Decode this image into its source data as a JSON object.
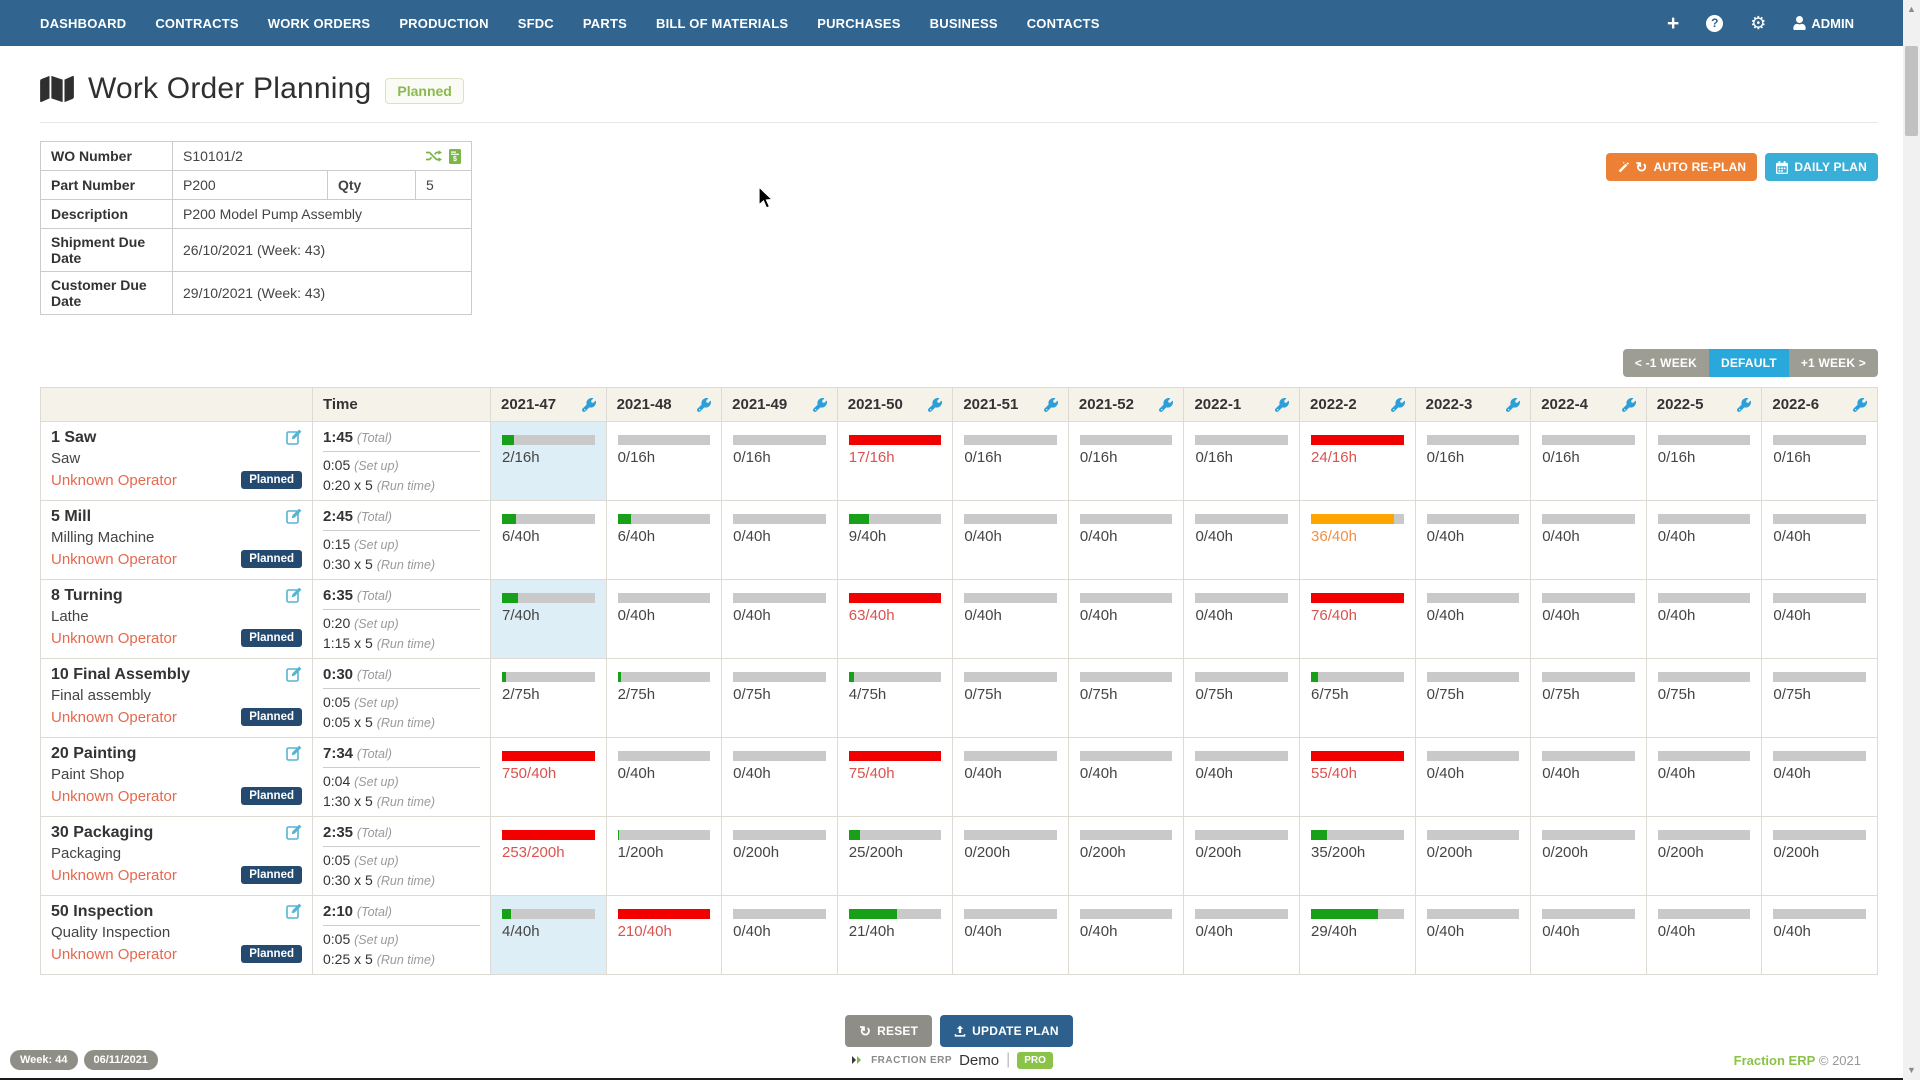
{
  "nav": {
    "items": [
      "DASHBOARD",
      "CONTRACTS",
      "WORK ORDERS",
      "PRODUCTION",
      "SFDC",
      "PARTS",
      "BILL OF MATERIALS",
      "PURCHASES",
      "BUSINESS",
      "CONTACTS"
    ],
    "admin_label": "ADMIN"
  },
  "header": {
    "title": "Work Order Planning",
    "status_badge": "Planned"
  },
  "details": {
    "wo_number_label": "WO Number",
    "wo_number": "S10101/2",
    "part_number_label": "Part Number",
    "part_number": "P200",
    "qty_label": "Qty",
    "qty": "5",
    "description_label": "Description",
    "description": "P200 Model Pump Assembly",
    "shipment_label": "Shipment Due Date",
    "shipment": "26/10/2021 (Week: 43)",
    "customer_label": "Customer Due Date",
    "customer": "29/10/2021 (Week: 43)"
  },
  "toolbar": {
    "auto_replan": "AUTO RE-PLAN",
    "daily_plan": "DAILY PLAN"
  },
  "week_nav": {
    "prev": "< -1 WEEK",
    "default": "DEFAULT",
    "next": "+1 WEEK >"
  },
  "plan_table": {
    "time_header": "Time",
    "weeks": [
      "2021-47",
      "2021-48",
      "2021-49",
      "2021-50",
      "2021-51",
      "2021-52",
      "2022-1",
      "2022-2",
      "2022-3",
      "2022-4",
      "2022-5",
      "2022-6"
    ],
    "total_suffix": "(Total)",
    "setup_suffix": "(Set up)",
    "runtime_suffix": "(Run time)",
    "operator": "Unknown Operator",
    "badge": "Planned",
    "rows": [
      {
        "name": "1 Saw",
        "machine": "Saw",
        "total": "1:45",
        "setup": "0:05",
        "runtime": "0:20 x 5",
        "cells": [
          {
            "label": "2/16h",
            "pct": 13,
            "color": "green",
            "hl": true
          },
          {
            "label": "0/16h",
            "pct": 0,
            "color": ""
          },
          {
            "label": "0/16h",
            "pct": 0,
            "color": ""
          },
          {
            "label": "17/16h",
            "pct": 100,
            "color": "red"
          },
          {
            "label": "0/16h",
            "pct": 0,
            "color": ""
          },
          {
            "label": "0/16h",
            "pct": 0,
            "color": ""
          },
          {
            "label": "0/16h",
            "pct": 0,
            "color": ""
          },
          {
            "label": "24/16h",
            "pct": 100,
            "color": "red"
          },
          {
            "label": "0/16h",
            "pct": 0,
            "color": ""
          },
          {
            "label": "0/16h",
            "pct": 0,
            "color": ""
          },
          {
            "label": "0/16h",
            "pct": 0,
            "color": ""
          },
          {
            "label": "0/16h",
            "pct": 0,
            "color": ""
          }
        ]
      },
      {
        "name": "5 Mill",
        "machine": "Milling Machine",
        "total": "2:45",
        "setup": "0:15",
        "runtime": "0:30 x 5",
        "cells": [
          {
            "label": "6/40h",
            "pct": 15,
            "color": "green"
          },
          {
            "label": "6/40h",
            "pct": 15,
            "color": "green"
          },
          {
            "label": "0/40h",
            "pct": 0,
            "color": ""
          },
          {
            "label": "9/40h",
            "pct": 22,
            "color": "green"
          },
          {
            "label": "0/40h",
            "pct": 0,
            "color": ""
          },
          {
            "label": "0/40h",
            "pct": 0,
            "color": ""
          },
          {
            "label": "0/40h",
            "pct": 0,
            "color": ""
          },
          {
            "label": "36/40h",
            "pct": 90,
            "color": "orange"
          },
          {
            "label": "0/40h",
            "pct": 0,
            "color": ""
          },
          {
            "label": "0/40h",
            "pct": 0,
            "color": ""
          },
          {
            "label": "0/40h",
            "pct": 0,
            "color": ""
          },
          {
            "label": "0/40h",
            "pct": 0,
            "color": ""
          }
        ]
      },
      {
        "name": "8 Turning",
        "machine": "Lathe",
        "total": "6:35",
        "setup": "0:20",
        "runtime": "1:15 x 5",
        "cells": [
          {
            "label": "7/40h",
            "pct": 17,
            "color": "green",
            "hl": true
          },
          {
            "label": "0/40h",
            "pct": 0,
            "color": ""
          },
          {
            "label": "0/40h",
            "pct": 0,
            "color": ""
          },
          {
            "label": "63/40h",
            "pct": 100,
            "color": "red"
          },
          {
            "label": "0/40h",
            "pct": 0,
            "color": ""
          },
          {
            "label": "0/40h",
            "pct": 0,
            "color": ""
          },
          {
            "label": "0/40h",
            "pct": 0,
            "color": ""
          },
          {
            "label": "76/40h",
            "pct": 100,
            "color": "red"
          },
          {
            "label": "0/40h",
            "pct": 0,
            "color": ""
          },
          {
            "label": "0/40h",
            "pct": 0,
            "color": ""
          },
          {
            "label": "0/40h",
            "pct": 0,
            "color": ""
          },
          {
            "label": "0/40h",
            "pct": 0,
            "color": ""
          }
        ]
      },
      {
        "name": "10 Final Assembly",
        "machine": "Final assembly",
        "total": "0:30",
        "setup": "0:05",
        "runtime": "0:05 x 5",
        "cells": [
          {
            "label": "2/75h",
            "pct": 4,
            "color": "green"
          },
          {
            "label": "2/75h",
            "pct": 4,
            "color": "green"
          },
          {
            "label": "0/75h",
            "pct": 0,
            "color": ""
          },
          {
            "label": "4/75h",
            "pct": 6,
            "color": "green"
          },
          {
            "label": "0/75h",
            "pct": 0,
            "color": ""
          },
          {
            "label": "0/75h",
            "pct": 0,
            "color": ""
          },
          {
            "label": "0/75h",
            "pct": 0,
            "color": ""
          },
          {
            "label": "6/75h",
            "pct": 8,
            "color": "green"
          },
          {
            "label": "0/75h",
            "pct": 0,
            "color": ""
          },
          {
            "label": "0/75h",
            "pct": 0,
            "color": ""
          },
          {
            "label": "0/75h",
            "pct": 0,
            "color": ""
          },
          {
            "label": "0/75h",
            "pct": 0,
            "color": ""
          }
        ]
      },
      {
        "name": "20 Painting",
        "machine": "Paint Shop",
        "total": "7:34",
        "setup": "0:04",
        "runtime": "1:30 x 5",
        "cells": [
          {
            "label": "750/40h",
            "pct": 100,
            "color": "red"
          },
          {
            "label": "0/40h",
            "pct": 0,
            "color": ""
          },
          {
            "label": "0/40h",
            "pct": 0,
            "color": ""
          },
          {
            "label": "75/40h",
            "pct": 100,
            "color": "red"
          },
          {
            "label": "0/40h",
            "pct": 0,
            "color": ""
          },
          {
            "label": "0/40h",
            "pct": 0,
            "color": ""
          },
          {
            "label": "0/40h",
            "pct": 0,
            "color": ""
          },
          {
            "label": "55/40h",
            "pct": 100,
            "color": "red"
          },
          {
            "label": "0/40h",
            "pct": 0,
            "color": ""
          },
          {
            "label": "0/40h",
            "pct": 0,
            "color": ""
          },
          {
            "label": "0/40h",
            "pct": 0,
            "color": ""
          },
          {
            "label": "0/40h",
            "pct": 0,
            "color": ""
          }
        ]
      },
      {
        "name": "30 Packaging",
        "machine": "Packaging",
        "total": "2:35",
        "setup": "0:05",
        "runtime": "0:30 x 5",
        "cells": [
          {
            "label": "253/200h",
            "pct": 100,
            "color": "red"
          },
          {
            "label": "1/200h",
            "pct": 1,
            "color": "green"
          },
          {
            "label": "0/200h",
            "pct": 0,
            "color": ""
          },
          {
            "label": "25/200h",
            "pct": 12,
            "color": "green"
          },
          {
            "label": "0/200h",
            "pct": 0,
            "color": ""
          },
          {
            "label": "0/200h",
            "pct": 0,
            "color": ""
          },
          {
            "label": "0/200h",
            "pct": 0,
            "color": ""
          },
          {
            "label": "35/200h",
            "pct": 17,
            "color": "green"
          },
          {
            "label": "0/200h",
            "pct": 0,
            "color": ""
          },
          {
            "label": "0/200h",
            "pct": 0,
            "color": ""
          },
          {
            "label": "0/200h",
            "pct": 0,
            "color": ""
          },
          {
            "label": "0/200h",
            "pct": 0,
            "color": ""
          }
        ]
      },
      {
        "name": "50 Inspection",
        "machine": "Quality Inspection",
        "total": "2:10",
        "setup": "0:05",
        "runtime": "0:25 x 5",
        "cells": [
          {
            "label": "4/40h",
            "pct": 10,
            "color": "green",
            "hl": true
          },
          {
            "label": "210/40h",
            "pct": 100,
            "color": "red"
          },
          {
            "label": "0/40h",
            "pct": 0,
            "color": ""
          },
          {
            "label": "21/40h",
            "pct": 52,
            "color": "green"
          },
          {
            "label": "0/40h",
            "pct": 0,
            "color": ""
          },
          {
            "label": "0/40h",
            "pct": 0,
            "color": ""
          },
          {
            "label": "0/40h",
            "pct": 0,
            "color": ""
          },
          {
            "label": "29/40h",
            "pct": 72,
            "color": "green"
          },
          {
            "label": "0/40h",
            "pct": 0,
            "color": ""
          },
          {
            "label": "0/40h",
            "pct": 0,
            "color": ""
          },
          {
            "label": "0/40h",
            "pct": 0,
            "color": ""
          },
          {
            "label": "0/40h",
            "pct": 0,
            "color": ""
          }
        ]
      }
    ]
  },
  "actions": {
    "reset": "RESET",
    "update": "UPDATE PLAN"
  },
  "footer": {
    "week_badge": "Week: 44",
    "date_badge": "06/11/2021",
    "brand_small": "FRACTION ERP",
    "brand_demo": "Demo",
    "separator": "|",
    "pro_badge": "PRO",
    "copyright_brand": "Fraction ERP",
    "copyright": "© 2021"
  },
  "colors": {
    "navbar": "#31648f",
    "bar_green": "#18a018",
    "bar_red": "#f20000",
    "bar_orange": "#ffa500",
    "over_text": "#d9534f",
    "highlight_cell": "#ddeef6",
    "replan_btn": "#ec8135",
    "daily_btn": "#39aed6",
    "update_btn": "#2d608d",
    "brand_green": "#8bc34a"
  }
}
